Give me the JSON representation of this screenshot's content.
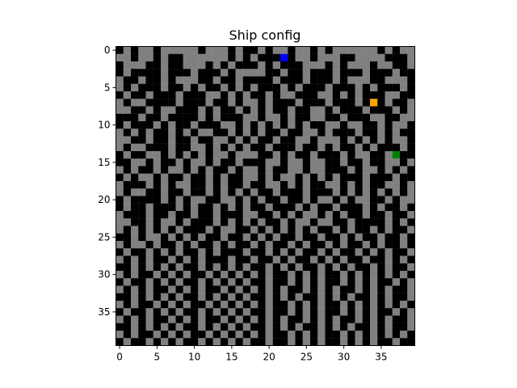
{
  "chart_data": {
    "type": "heatmap",
    "title": "Ship config",
    "xlabel": "",
    "ylabel": "",
    "rows": 40,
    "cols": 40,
    "xlim": [
      -0.5,
      39.5
    ],
    "ylim": [
      39.5,
      -0.5
    ],
    "x_ticks": [
      0,
      5,
      10,
      15,
      20,
      25,
      30,
      35
    ],
    "y_ticks": [
      0,
      5,
      10,
      15,
      20,
      25,
      30,
      35
    ],
    "grid": false,
    "colors": {
      "open": "#808080",
      "wall": "#000000",
      "bot": "#0000ff",
      "button": "#ffa500",
      "fire": "#008000"
    },
    "special_cells": [
      {
        "role": "bot",
        "row": 1,
        "col": 22
      },
      {
        "role": "button",
        "row": 7,
        "col": 34
      },
      {
        "role": "fire",
        "row": 14,
        "col": 37
      }
    ],
    "grid_rows": [
      "#0#00#00000#000#0##0#00#00#0#000000#0#00",
      "00#00#0##000000#0#0###0#00#000##0000###0",
      "#000##0##000#0#0###0#0###000#0#000#00##0",
      "#0####0###0###0#0000##0##0###0###0###0##",
      "0##0##0#000##0##0####0###0###0#000##000#",
      "0#0###0##0#0##0#0#0###0#0###0###0#0###0#",
      "#0##0###0###00#0#0##0#00###00#0#0###00##",
      "0#00####0###0##0#00#0###0###0###0#0#0##0",
      "00##0#00###0#0##0#0#0##0##00#0###0###0#0",
      "###0##0####0#0###00#00#0##00##0###00##00",
      "#0###0#0##0###00#0#0#0#0#0##00#00##0#00#",
      "0#0#0##0#0#00##0#0#0##0##00#0###0##0#0##",
      "00##0##0##0##00#0#0##0##00#000#0#0#0#00#",
      "0#00###0##00#0#0#0##0###0##0#0##0#0###0#",
      "#0##00#0#0#0#00#000##0#0##0###0#00##0###",
      "##00#0##0#00#0##0###00#00#00##0##0##00#0",
      "0#0##0#00#0#0##0#00#0##00#00###0#00#0#0#",
      "#0#00#0##0##0#0##00#0#00#0#0#0###0###0##",
      "0###0#0#00##0#0##0##00#0#0##00#0#0##00#0",
      "0#00##0##0##0#0#0#0##0###0###0#0#0#0#0#0",
      "#0####0#0#00##00#0#0##0##0#00#0#00##0#00",
      "#0##0###0#0##0#0#0##0###0#0##0###0#0##0#",
      "0###0##0##0##0###00##0#0#00#0#0##0##0##0",
      "00##0#00#0###0#0#0#0##0#00#00##0####0#0#",
      "0#0#0#0#0###0#00##0#0#0#0#0##0#0##0#0##0",
      "##0#00#0#0#0##0##0#0#0##0##0##0#0##0##0#",
      "0#00#0##0#0##0#0##0#0##0#0##0#0##0#0##0#",
      "#0##0#0#0##0#0###0##0#0#0##0#0##0#0#0##0",
      "0#0#0##0#0#0###0##0##0#0##0#0#0##0##0#0#",
      "##0#0#0#0##0#0#0#0##0#0#0##0#0#0##0#0##0",
      "0#0##0#0#0##0#0#0#0#0##0#0#0##0#0#0#0#0#",
      "#0##0#0#0##0#0#0#0##0##0#0#0##0#0#0##0#0",
      "0#0#0##0#0#0##0#0#0#0#0##0#0#0##0#0#0##0",
      "##0#0#0#0##0#0#0#0##0#0#0##0#0#0##0#0##0",
      "0#0##0#0#0##0#0#0#0#0##0#0#0##0#0#0#0#0#",
      "#0##0#0#0##0#0#0#0##0##0#0#0##0#0#0##0#0",
      "0#0#0##0#0#0##0#0#0#0#0##0#0#0##0#0#0##0",
      "##0#0#0#0##0#0#0#0##0#0#0##0#0#0##0#0##0",
      "0#0##0#0#0##0#0#0#0#0##0#0#0##0#0#0#0#0#",
      "#0##0#0#0##0#0#0#0##0##0#0#0##0#0#0##0##"
    ]
  }
}
